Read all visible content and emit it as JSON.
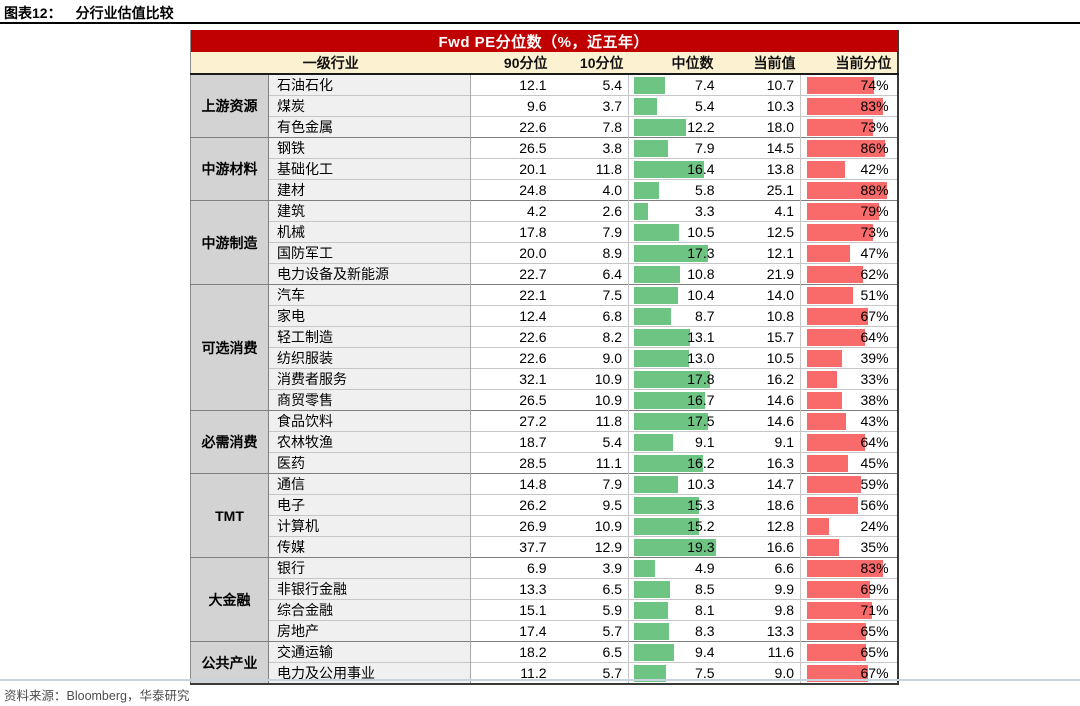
{
  "figure": {
    "label": "图表12：",
    "title": "分行业估值比较"
  },
  "footer": {
    "source": "资料来源：Bloomberg，华泰研究"
  },
  "colors": {
    "header_bg": "#C00000",
    "header_text": "#FFFFFF",
    "col_header_bg": "#FCF2D1",
    "group_bg": "#D3D3D3",
    "industry_bg": "#F0F0F0",
    "median_bar": "#6EC482",
    "percentile_bar": "#F96A6A"
  },
  "chart_data": {
    "type": "table",
    "title": "Fwd PE分位数（%，近五年）",
    "columns": {
      "industry_l1": "一级行业",
      "p90": "90分位",
      "p10": "10分位",
      "median": "中位数",
      "current": "当前值",
      "current_pct": "当前分位"
    },
    "median_bar_scale_max": 20,
    "percent_bar_scale_max": 100,
    "groups": [
      {
        "name": "上游资源",
        "rows": [
          {
            "industry": "石油石化",
            "p90": 12.1,
            "p10": 5.4,
            "median": 7.4,
            "current": 10.7,
            "current_pct": 74
          },
          {
            "industry": "煤炭",
            "p90": 9.6,
            "p10": 3.7,
            "median": 5.4,
            "current": 10.3,
            "current_pct": 83
          },
          {
            "industry": "有色金属",
            "p90": 22.6,
            "p10": 7.8,
            "median": 12.2,
            "current": 18.0,
            "current_pct": 73
          }
        ]
      },
      {
        "name": "中游材料",
        "rows": [
          {
            "industry": "钢铁",
            "p90": 26.5,
            "p10": 3.8,
            "median": 7.9,
            "current": 14.5,
            "current_pct": 86
          },
          {
            "industry": "基础化工",
            "p90": 20.1,
            "p10": 11.8,
            "median": 16.4,
            "current": 13.8,
            "current_pct": 42
          },
          {
            "industry": "建材",
            "p90": 24.8,
            "p10": 4.0,
            "median": 5.8,
            "current": 25.1,
            "current_pct": 88
          }
        ]
      },
      {
        "name": "中游制造",
        "rows": [
          {
            "industry": "建筑",
            "p90": 4.2,
            "p10": 2.6,
            "median": 3.3,
            "current": 4.1,
            "current_pct": 79
          },
          {
            "industry": "机械",
            "p90": 17.8,
            "p10": 7.9,
            "median": 10.5,
            "current": 12.5,
            "current_pct": 73
          },
          {
            "industry": "国防军工",
            "p90": 20.0,
            "p10": 8.9,
            "median": 17.3,
            "current": 12.1,
            "current_pct": 47
          },
          {
            "industry": "电力设备及新能源",
            "p90": 22.7,
            "p10": 6.4,
            "median": 10.8,
            "current": 21.9,
            "current_pct": 62
          }
        ]
      },
      {
        "name": "可选消费",
        "rows": [
          {
            "industry": "汽车",
            "p90": 22.1,
            "p10": 7.5,
            "median": 10.4,
            "current": 14.0,
            "current_pct": 51
          },
          {
            "industry": "家电",
            "p90": 12.4,
            "p10": 6.8,
            "median": 8.7,
            "current": 10.8,
            "current_pct": 67
          },
          {
            "industry": "轻工制造",
            "p90": 22.6,
            "p10": 8.2,
            "median": 13.1,
            "current": 15.7,
            "current_pct": 64
          },
          {
            "industry": "纺织服装",
            "p90": 22.6,
            "p10": 9.0,
            "median": 13.0,
            "current": 10.5,
            "current_pct": 39
          },
          {
            "industry": "消费者服务",
            "p90": 32.1,
            "p10": 10.9,
            "median": 17.8,
            "current": 16.2,
            "current_pct": 33
          },
          {
            "industry": "商贸零售",
            "p90": 26.5,
            "p10": 10.9,
            "median": 16.7,
            "current": 14.6,
            "current_pct": 38
          }
        ]
      },
      {
        "name": "必需消费",
        "rows": [
          {
            "industry": "食品饮料",
            "p90": 27.2,
            "p10": 11.8,
            "median": 17.5,
            "current": 14.6,
            "current_pct": 43
          },
          {
            "industry": "农林牧渔",
            "p90": 18.7,
            "p10": 5.4,
            "median": 9.1,
            "current": 9.1,
            "current_pct": 64
          },
          {
            "industry": "医药",
            "p90": 28.5,
            "p10": 11.1,
            "median": 16.2,
            "current": 16.3,
            "current_pct": 45
          }
        ]
      },
      {
        "name": "TMT",
        "rows": [
          {
            "industry": "通信",
            "p90": 14.8,
            "p10": 7.9,
            "median": 10.3,
            "current": 14.7,
            "current_pct": 59
          },
          {
            "industry": "电子",
            "p90": 26.2,
            "p10": 9.5,
            "median": 15.3,
            "current": 18.6,
            "current_pct": 56
          },
          {
            "industry": "计算机",
            "p90": 26.9,
            "p10": 10.9,
            "median": 15.2,
            "current": 12.8,
            "current_pct": 24
          },
          {
            "industry": "传媒",
            "p90": 37.7,
            "p10": 12.9,
            "median": 19.3,
            "current": 16.6,
            "current_pct": 35
          }
        ]
      },
      {
        "name": "大金融",
        "rows": [
          {
            "industry": "银行",
            "p90": 6.9,
            "p10": 3.9,
            "median": 4.9,
            "current": 6.6,
            "current_pct": 83
          },
          {
            "industry": "非银行金融",
            "p90": 13.3,
            "p10": 6.5,
            "median": 8.5,
            "current": 9.9,
            "current_pct": 69
          },
          {
            "industry": "综合金融",
            "p90": 15.1,
            "p10": 5.9,
            "median": 8.1,
            "current": 9.8,
            "current_pct": 71
          },
          {
            "industry": "房地产",
            "p90": 17.4,
            "p10": 5.7,
            "median": 8.3,
            "current": 13.3,
            "current_pct": 65
          }
        ]
      },
      {
        "name": "公共产业",
        "rows": [
          {
            "industry": "交通运输",
            "p90": 18.2,
            "p10": 6.5,
            "median": 9.4,
            "current": 11.6,
            "current_pct": 65
          },
          {
            "industry": "电力及公用事业",
            "p90": 11.2,
            "p10": 5.7,
            "median": 7.5,
            "current": 9.0,
            "current_pct": 67
          }
        ]
      }
    ]
  }
}
